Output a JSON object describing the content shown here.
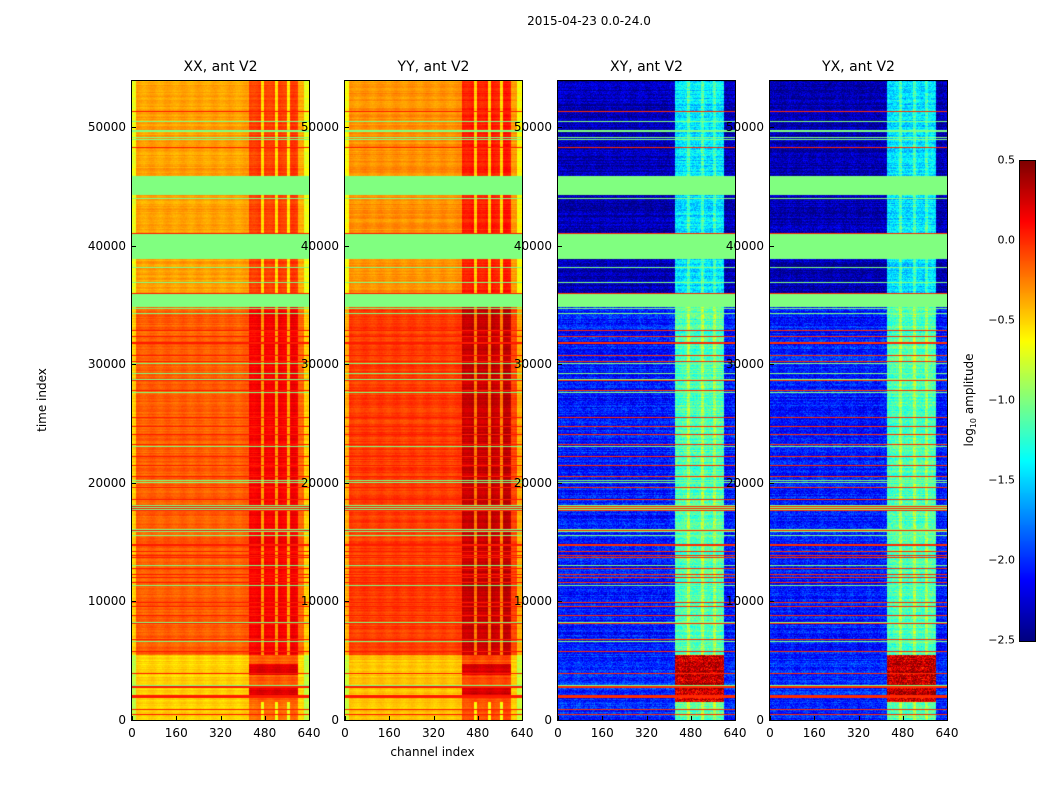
{
  "chart_data": {
    "type": "heatmap",
    "title": "2015-04-23 0.0-24.0",
    "xlabel": "channel index",
    "ylabel": "time index",
    "xlim": [
      0,
      640
    ],
    "ylim": [
      0,
      53900
    ],
    "xticks": [
      "0",
      "160",
      "320",
      "480",
      "640"
    ],
    "xtick_values": [
      0,
      160,
      320,
      480,
      640
    ],
    "yticks": [
      "0",
      "10000",
      "20000",
      "30000",
      "40000",
      "50000"
    ],
    "ytick_values": [
      0,
      10000,
      20000,
      30000,
      40000,
      50000
    ],
    "colormap": "jet",
    "colorbar": {
      "label_prefix": "log",
      "label_sub": "10",
      "label_suffix": " amplitude",
      "range": [
        -2.5,
        0.5
      ],
      "ticks": [
        "0.5",
        "0.0",
        "−0.5",
        "−1.0",
        "−1.5",
        "−2.0",
        "−2.5"
      ],
      "tick_values": [
        0.5,
        0.0,
        -0.5,
        -1.0,
        -1.5,
        -2.0,
        -2.5
      ]
    },
    "flagged_time_ranges": [
      [
        38900,
        41000
      ],
      [
        34800,
        35900
      ],
      [
        44300,
        45900
      ]
    ],
    "flag_value": -1.0,
    "rfi_channel_range": [
      420,
      600
    ],
    "panels": [
      {
        "title": "XX, ant V2",
        "base_value": -0.15,
        "late_value": -0.35,
        "early_value": -0.5,
        "rfi_boost": 0.3
      },
      {
        "title": "YY, ant V2",
        "base_value": -0.05,
        "late_value": -0.3,
        "early_value": -0.45,
        "rfi_boost": 0.35
      },
      {
        "title": "XY, ant V2",
        "base_value": -2.05,
        "late_value": -2.35,
        "early_value": -2.0,
        "rfi_boost": 0.9
      },
      {
        "title": "YX, ant V2",
        "base_value": -2.05,
        "late_value": -2.35,
        "early_value": -2.0,
        "rfi_boost": 0.9
      }
    ]
  }
}
